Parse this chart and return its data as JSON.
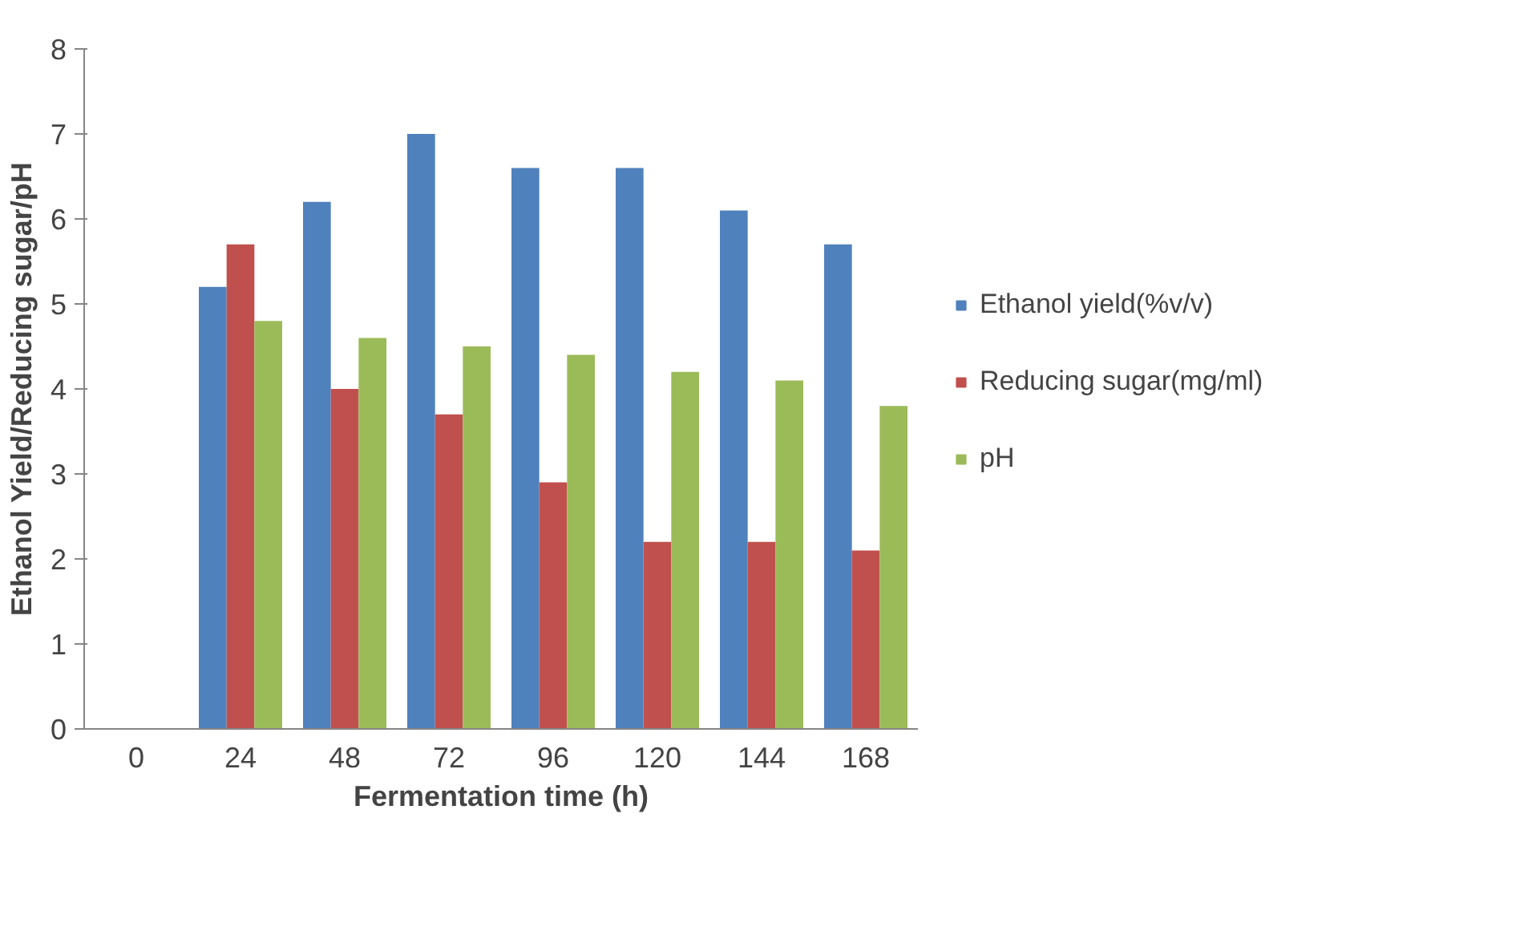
{
  "chart_data": {
    "type": "bar",
    "xlabel": "Fermentation time (h)",
    "ylabel": "Ethanol Yield/Reducing sugar/pH",
    "categories": [
      "0",
      "24",
      "48",
      "72",
      "96",
      "120",
      "144",
      "168"
    ],
    "series": [
      {
        "name": "Ethanol yield(%v/v)",
        "color": "#4f81bd",
        "values": [
          0,
          5.2,
          6.2,
          7.0,
          6.6,
          6.6,
          6.1,
          5.7
        ]
      },
      {
        "name": "Reducing sugar(mg/ml)",
        "color": "#c0504d",
        "values": [
          0,
          5.7,
          4.0,
          3.7,
          2.9,
          2.2,
          2.2,
          2.1
        ]
      },
      {
        "name": "pH",
        "color": "#9bbb59",
        "values": [
          0,
          4.8,
          4.6,
          4.5,
          4.4,
          4.2,
          4.1,
          3.8
        ]
      }
    ],
    "ylim": [
      0,
      8
    ],
    "yticks": [
      0,
      1,
      2,
      3,
      4,
      5,
      6,
      7,
      8
    ],
    "grid": false,
    "legend": "right"
  }
}
